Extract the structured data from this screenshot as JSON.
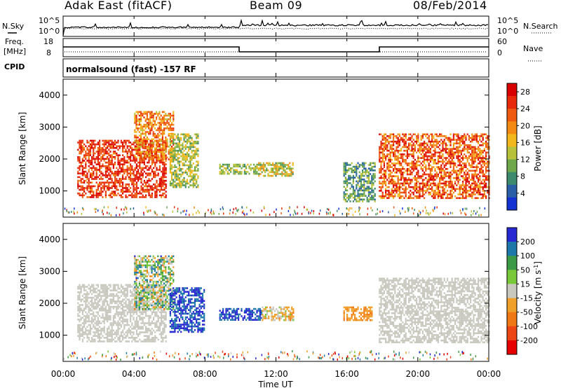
{
  "header": {
    "station": "Adak East (fitACF)",
    "beam": "Beam 09",
    "date": "08/Feb/2014"
  },
  "panels": {
    "nsky": {
      "label": "N.Sky",
      "ticks": [
        "10^5",
        "10^0"
      ]
    },
    "nsearch": {
      "label": "N.Search",
      "ticks": [
        "10^5",
        "10^0"
      ]
    },
    "freq": {
      "label_line1": "Freq.",
      "label_line2": "[MHz]",
      "ticks": [
        "18",
        "8"
      ]
    },
    "nave": {
      "label": "Nave",
      "ticks": [
        "60",
        "0"
      ]
    },
    "cpid": {
      "label": "CPID",
      "value": "normalsound (fast) -157 RF"
    }
  },
  "colors": {
    "power": [
      "#1432d2",
      "#2a5fa8",
      "#3d8a6e",
      "#6ea84a",
      "#b7c23a",
      "#f2b71c",
      "#f28a14",
      "#ee5a10",
      "#e62a0a",
      "#d80000"
    ],
    "velocity": [
      "#2828d2",
      "#1e78aa",
      "#3c9a46",
      "#78c83a",
      "#c8c8be",
      "#f0a028",
      "#f07814",
      "#ec4614",
      "#e60000"
    ]
  },
  "chart_data": [
    {
      "type": "heatmap",
      "name": "power",
      "ylabel": "Slant Range [km]",
      "xlabel": "",
      "xlim": [
        "00:00",
        "24:00"
      ],
      "ylim": [
        180,
        4500
      ],
      "yticks": [
        "1000",
        "2000",
        "3000",
        "4000"
      ],
      "xticks": [
        "00:00",
        "04:00",
        "08:00",
        "12:00",
        "16:00",
        "20:00",
        "00:00"
      ],
      "colorbar": {
        "label": "Power [dB]",
        "ticks": [
          "4",
          "8",
          "12",
          "16",
          "20",
          "24",
          "28"
        ],
        "range": [
          0,
          30
        ]
      },
      "regions": [
        {
          "t_start": 0.8,
          "t_end": 5.8,
          "r_min": 800,
          "r_max": 2600,
          "value_range": [
            20,
            30
          ]
        },
        {
          "t_start": 4.0,
          "t_end": 6.2,
          "r_min": 2000,
          "r_max": 3500,
          "value_range": [
            14,
            26
          ]
        },
        {
          "t_start": 6.0,
          "t_end": 7.6,
          "r_min": 1100,
          "r_max": 2800,
          "value_range": [
            8,
            18
          ]
        },
        {
          "t_start": 8.8,
          "t_end": 11.0,
          "r_min": 1550,
          "r_max": 1850,
          "value_range": [
            8,
            16
          ]
        },
        {
          "t_start": 11.0,
          "t_end": 13.0,
          "r_min": 1450,
          "r_max": 1900,
          "value_range": [
            8,
            20
          ]
        },
        {
          "t_start": 15.8,
          "t_end": 17.6,
          "r_min": 700,
          "r_max": 1900,
          "value_range": [
            4,
            14
          ]
        },
        {
          "t_start": 17.8,
          "t_end": 24.0,
          "r_min": 800,
          "r_max": 2800,
          "value_range": [
            16,
            30
          ]
        }
      ]
    },
    {
      "type": "heatmap",
      "name": "velocity",
      "ylabel": "Slant Range [km]",
      "xlabel": "Time UT",
      "xlim": [
        "00:00",
        "24:00"
      ],
      "ylim": [
        180,
        4500
      ],
      "yticks": [
        "1000",
        "2000",
        "3000",
        "4000"
      ],
      "xticks": [
        "00:00",
        "04:00",
        "08:00",
        "12:00",
        "16:00",
        "20:00",
        "00:00"
      ],
      "colorbar": {
        "label": "Velocity [m s-1]",
        "ticks": [
          "200",
          "100",
          "50",
          "15",
          "-15",
          "-50",
          "-100",
          "-200"
        ],
        "range": [
          -250,
          250
        ]
      },
      "regions": [
        {
          "t_start": 0.8,
          "t_end": 5.8,
          "r_min": 800,
          "r_max": 2600,
          "value_range": [
            -15,
            15
          ]
        },
        {
          "t_start": 4.0,
          "t_end": 6.2,
          "r_min": 1800,
          "r_max": 3500,
          "value_range": [
            -100,
            200
          ]
        },
        {
          "t_start": 6.0,
          "t_end": 8.0,
          "r_min": 1100,
          "r_max": 2500,
          "value_range": [
            150,
            250
          ]
        },
        {
          "t_start": 8.8,
          "t_end": 11.2,
          "r_min": 1500,
          "r_max": 1850,
          "value_range": [
            150,
            250
          ]
        },
        {
          "t_start": 11.2,
          "t_end": 13.0,
          "r_min": 1450,
          "r_max": 1900,
          "value_range": [
            -100,
            50
          ]
        },
        {
          "t_start": 15.8,
          "t_end": 17.4,
          "r_min": 1450,
          "r_max": 1900,
          "value_range": [
            -100,
            -40
          ]
        },
        {
          "t_start": 17.8,
          "t_end": 24.0,
          "r_min": 800,
          "r_max": 2800,
          "value_range": [
            -15,
            15
          ]
        }
      ]
    }
  ]
}
